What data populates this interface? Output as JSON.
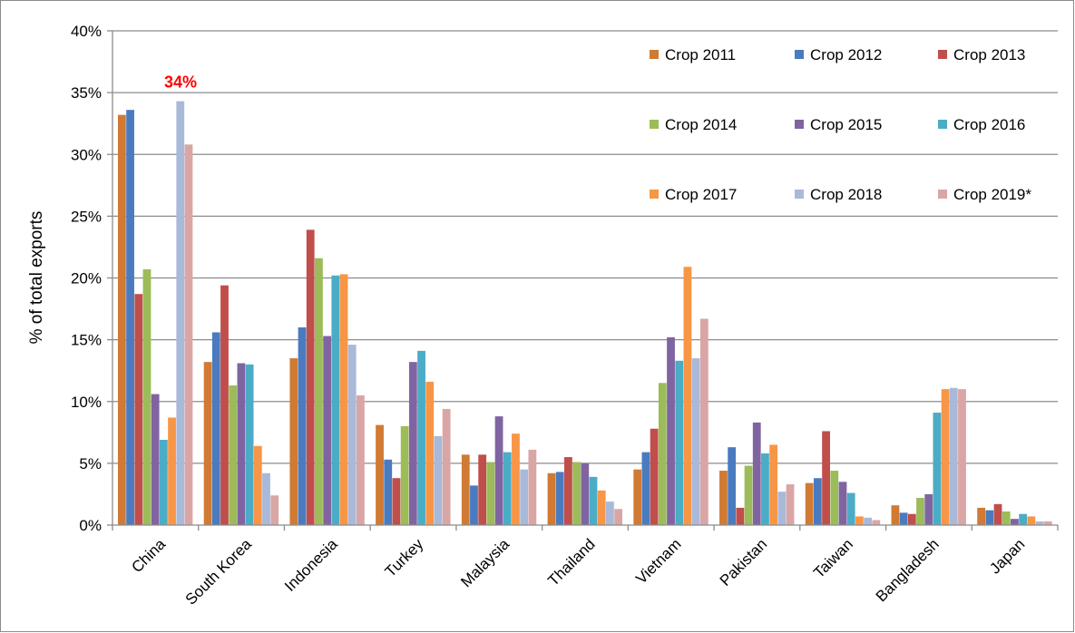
{
  "chart_data": {
    "type": "bar",
    "title": "",
    "xlabel": "",
    "ylabel": "% of total exports",
    "ylim": [
      0,
      40
    ],
    "yticks": [
      "0%",
      "5%",
      "10%",
      "15%",
      "20%",
      "25%",
      "30%",
      "35%",
      "40%"
    ],
    "grid": true,
    "legend_position": "top-right",
    "categories": [
      "China",
      "South Korea",
      "Indonesia",
      "Turkey",
      "Malaysia",
      "Thailand",
      "Vietnam",
      "Pakistan",
      "Taiwan",
      "Bangladesh",
      "Japan"
    ],
    "series": [
      {
        "name": "Crop 2011",
        "color": "#d07a33",
        "values": [
          33.2,
          13.2,
          13.5,
          8.1,
          5.7,
          4.2,
          4.5,
          4.4,
          3.4,
          1.6,
          1.4
        ]
      },
      {
        "name": "Crop 2012",
        "color": "#4a7bbf",
        "values": [
          33.6,
          15.6,
          16.0,
          5.3,
          3.2,
          4.3,
          5.9,
          6.3,
          3.8,
          1.0,
          1.2
        ]
      },
      {
        "name": "Crop 2013",
        "color": "#c04e4b",
        "values": [
          18.7,
          19.4,
          23.9,
          3.8,
          5.7,
          5.5,
          7.8,
          1.4,
          7.6,
          0.9,
          1.7
        ]
      },
      {
        "name": "Crop 2014",
        "color": "#9bbc58",
        "values": [
          20.7,
          11.3,
          21.6,
          8.0,
          5.1,
          5.1,
          11.5,
          4.8,
          4.4,
          2.2,
          1.1
        ]
      },
      {
        "name": "Crop 2015",
        "color": "#8064a2",
        "values": [
          10.6,
          13.1,
          15.3,
          13.2,
          8.8,
          5.0,
          15.2,
          8.3,
          3.5,
          2.5,
          0.5
        ]
      },
      {
        "name": "Crop 2016",
        "color": "#4bacc6",
        "values": [
          6.9,
          13.0,
          20.2,
          14.1,
          5.9,
          3.9,
          13.3,
          5.8,
          2.6,
          9.1,
          0.9
        ]
      },
      {
        "name": "Crop 2017",
        "color": "#f79646",
        "values": [
          8.7,
          6.4,
          20.3,
          11.6,
          7.4,
          2.8,
          20.9,
          6.5,
          0.7,
          11.0,
          0.7
        ]
      },
      {
        "name": "Crop 2018",
        "color": "#a9b9d9",
        "values": [
          34.3,
          4.2,
          14.6,
          7.2,
          4.5,
          1.9,
          13.5,
          2.7,
          0.6,
          11.1,
          0.3
        ]
      },
      {
        "name": "Crop 2019*",
        "color": "#d9a6a5",
        "values": [
          30.8,
          2.4,
          10.5,
          9.4,
          6.1,
          1.3,
          16.7,
          3.3,
          0.4,
          11.0,
          0.3
        ]
      }
    ],
    "annotations": [
      {
        "text": "34%",
        "category": "China",
        "series": "Crop 2018",
        "color": "#ff0000"
      }
    ]
  }
}
